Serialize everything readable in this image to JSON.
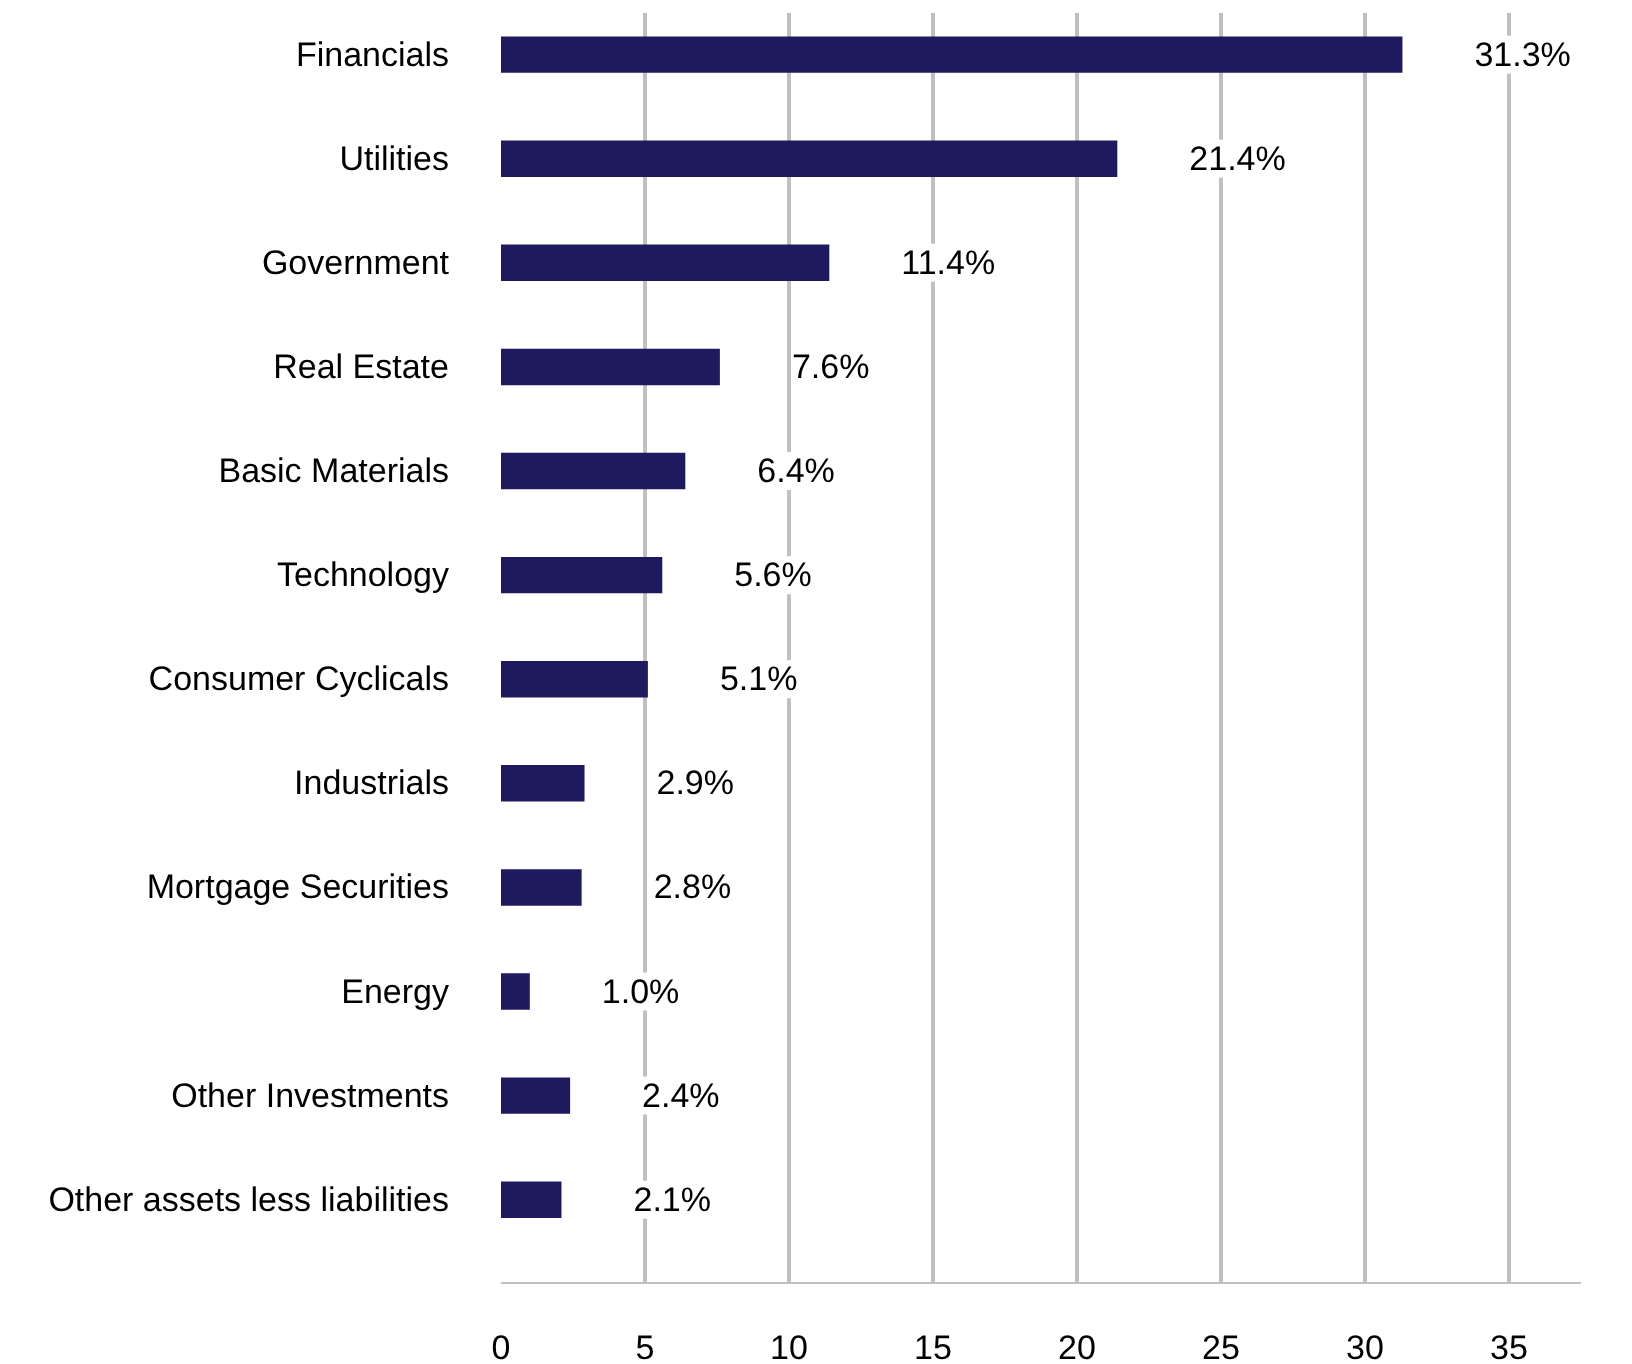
{
  "chart_data": {
    "type": "bar",
    "orientation": "horizontal",
    "categories": [
      "Financials",
      "Utilities",
      "Government",
      "Real Estate",
      "Basic Materials",
      "Technology",
      "Consumer Cyclicals",
      "Industrials",
      "Mortgage Securities",
      "Energy",
      "Other Investments",
      "Other assets less liabilities"
    ],
    "values": [
      31.3,
      21.4,
      11.4,
      7.6,
      6.4,
      5.6,
      5.1,
      2.9,
      2.8,
      1.0,
      2.4,
      2.1
    ],
    "value_labels": [
      "31.3%",
      "21.4%",
      "11.4%",
      "7.6%",
      "6.4%",
      "5.6%",
      "5.1%",
      "2.9%",
      "2.8%",
      "1.0%",
      "2.4%",
      "2.1%"
    ],
    "color": "#1f1a5e",
    "xlim": [
      0,
      37.5
    ],
    "xticks": [
      0,
      5,
      10,
      15,
      20,
      25,
      30,
      35
    ],
    "grid": "x"
  }
}
